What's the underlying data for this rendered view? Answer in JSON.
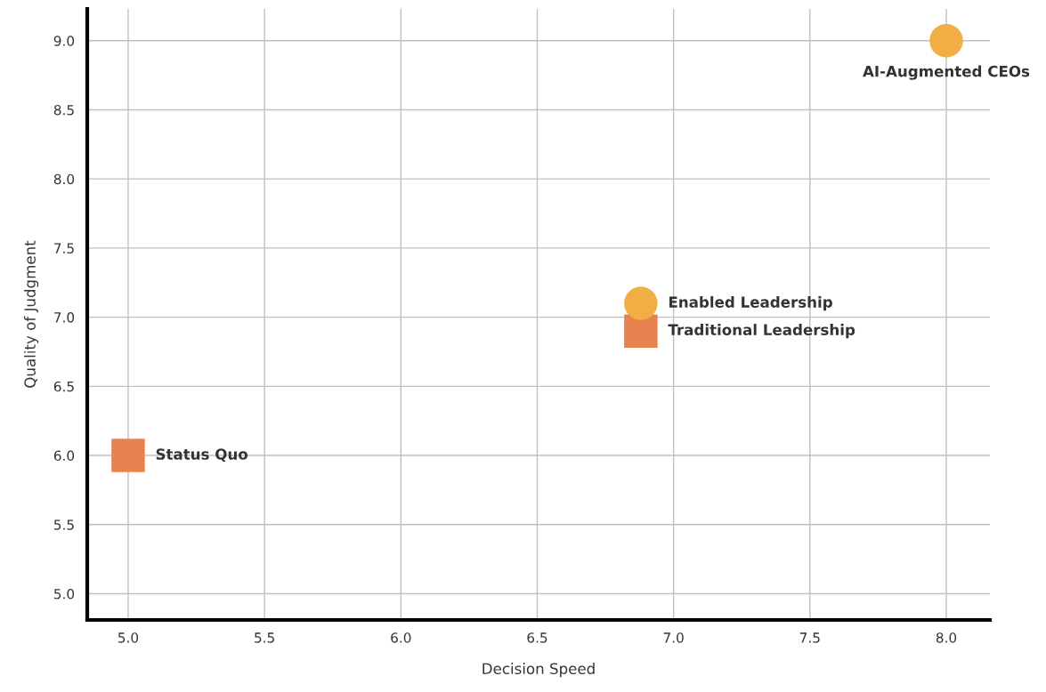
{
  "chart_data": {
    "type": "scatter",
    "xlabel": "Decision Speed",
    "ylabel": "Quality of Judgment",
    "series": [
      {
        "color": "#e8834f",
        "marker": "square",
        "x": [
          5.0,
          6.88
        ],
        "values": [
          6.0,
          6.9
        ]
      },
      {
        "color": "#f0ae45",
        "marker": "circle",
        "x": [
          6.88,
          8.0
        ],
        "values": [
          7.1,
          9.0
        ]
      }
    ],
    "annotations": [
      {
        "text": "Status Quo",
        "x": 5.0,
        "y": 6.0
      },
      {
        "text": "Traditional Leadership",
        "x": 6.88,
        "y": 6.9
      },
      {
        "text": "Enabled Leadership",
        "x": 6.88,
        "y": 7.1
      },
      {
        "text": "AI-Augmented CEOs",
        "x": 8.0,
        "y": 9.0
      }
    ],
    "xlim": [
      4.85,
      8.16
    ],
    "ylim": [
      4.81,
      9.23
    ],
    "xticks": [
      {
        "value": 5,
        "label": "5.0"
      },
      5.5,
      {
        "value": 6,
        "label": "6.0"
      },
      6.5,
      {
        "value": 7,
        "label": "7.0"
      },
      7.5,
      {
        "value": 8,
        "label": "8.0"
      }
    ],
    "yticks": [
      {
        "value": 5,
        "label": "5.0"
      },
      5.5,
      {
        "value": 6,
        "label": "6.0"
      },
      6.5,
      {
        "value": 7,
        "label": "7.0"
      },
      7.5,
      {
        "value": 8,
        "label": "8.0"
      },
      8.5,
      {
        "value": 9,
        "label": "9.0"
      }
    ],
    "grid": true,
    "legend": false
  }
}
